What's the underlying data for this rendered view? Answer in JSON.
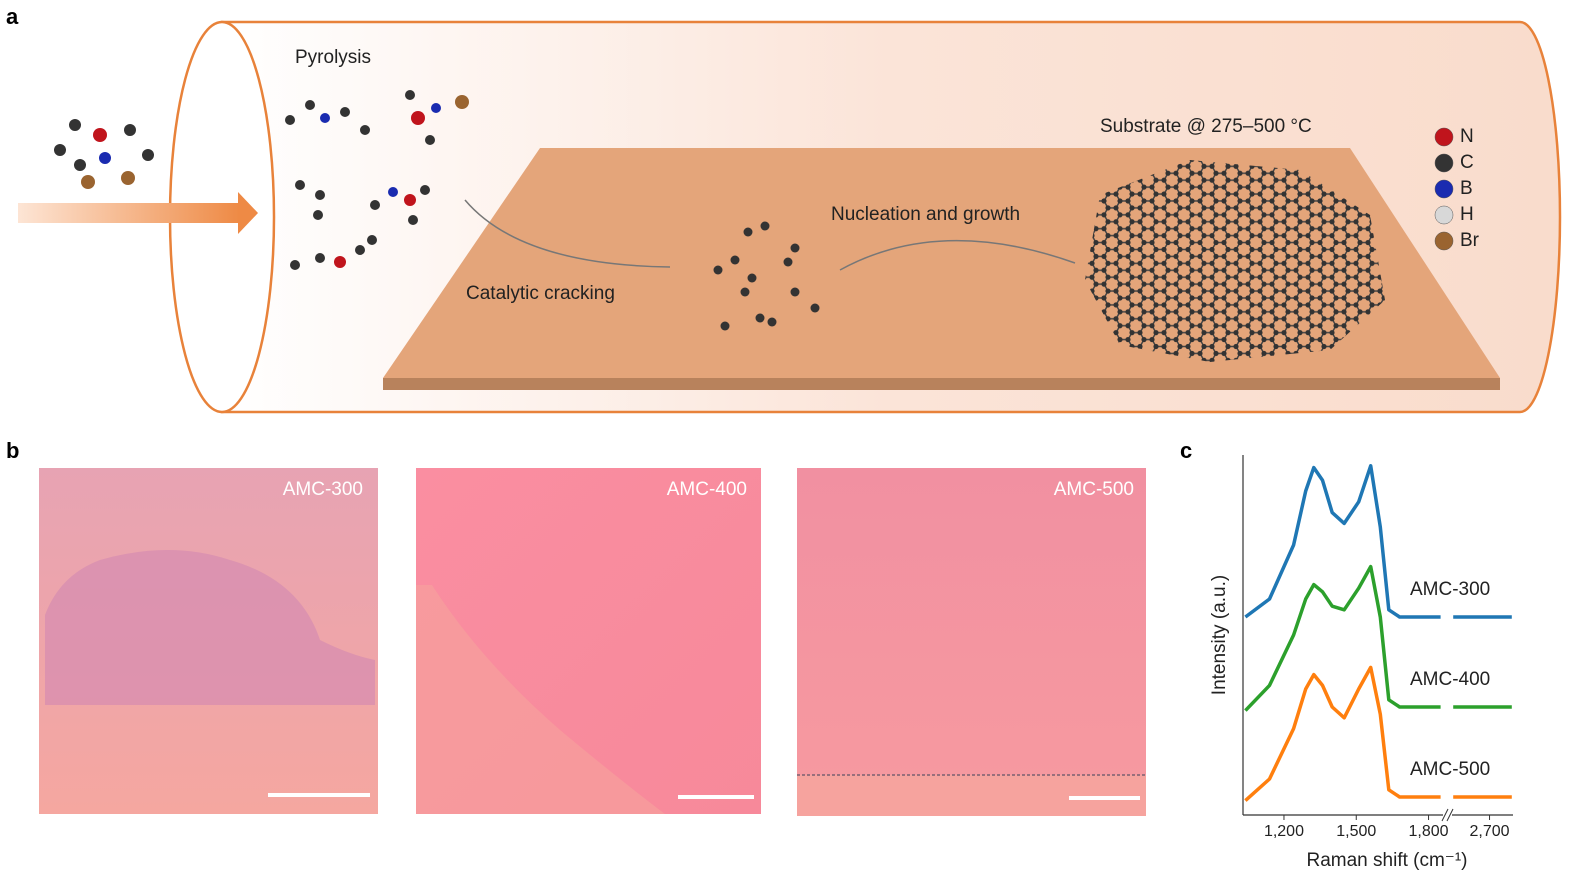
{
  "panels": {
    "a": "a",
    "b": "b",
    "c": "c"
  },
  "diagram": {
    "pyrolysis": "Pyrolysis",
    "cracking": "Catalytic cracking",
    "nucleation": "Nucleation and growth",
    "substrate": "Substrate @ 275–500 °C",
    "legend": [
      {
        "label": "N",
        "color": "#c0141c"
      },
      {
        "label": "C",
        "color": "#333333"
      },
      {
        "label": "B",
        "color": "#1a2bb0"
      },
      {
        "label": "H",
        "color": "#d8d8d8"
      },
      {
        "label": "Br",
        "color": "#9a6430"
      }
    ]
  },
  "images": [
    "AMC-300",
    "AMC-400",
    "AMC-500"
  ],
  "chart_data": {
    "type": "line",
    "x_label": "Raman shift (cm⁻¹)",
    "y_label": "Intensity (a.u.)",
    "xlim_segments": [
      [
        1030,
        1860
      ],
      [
        2540,
        2800
      ]
    ],
    "ylim": [
      0,
      1
    ],
    "xticks": [
      {
        "value": 1200,
        "label": "1,200"
      },
      {
        "value": 1500,
        "label": "1,500"
      },
      {
        "value": 1800,
        "label": "1,800"
      },
      {
        "value": 2700,
        "label": "2,700"
      }
    ],
    "x": [
      1040,
      1140,
      1240,
      1290,
      1324,
      1360,
      1400,
      1450,
      1510,
      1560,
      1600,
      1635,
      1680,
      1760,
      1850,
      null,
      2545,
      2795
    ],
    "series": [
      {
        "name": "AMC-300",
        "color": "#1f77b4",
        "values": [
          0.55,
          0.6,
          0.75,
          0.9,
          0.965,
          0.93,
          0.84,
          0.81,
          0.87,
          0.97,
          0.8,
          0.57,
          0.55,
          0.55,
          0.55,
          null,
          0.55,
          0.55
        ]
      },
      {
        "name": "AMC-400",
        "color": "#2ca02c",
        "values": [
          0.29,
          0.36,
          0.5,
          0.6,
          0.64,
          0.62,
          0.58,
          0.57,
          0.63,
          0.69,
          0.55,
          0.32,
          0.3,
          0.3,
          0.3,
          null,
          0.3,
          0.3
        ]
      },
      {
        "name": "AMC-500",
        "color": "#ff7f0e",
        "values": [
          0.04,
          0.1,
          0.24,
          0.35,
          0.39,
          0.36,
          0.3,
          0.27,
          0.35,
          0.41,
          0.28,
          0.07,
          0.05,
          0.05,
          0.05,
          null,
          0.05,
          0.05
        ]
      }
    ]
  }
}
